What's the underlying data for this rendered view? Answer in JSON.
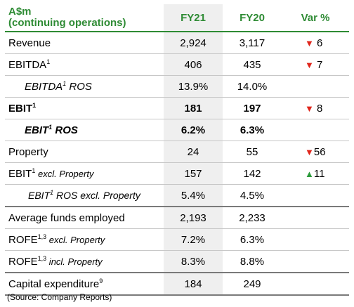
{
  "table": {
    "header": {
      "title_line1": "A$m",
      "title_line2": "(continuing operations)",
      "col_fy21": "FY21",
      "col_fy20": "FY20",
      "col_var": "Var %"
    },
    "rows": [
      {
        "label": "Revenue",
        "fy21": "2,924",
        "fy20": "3,117",
        "var": "6",
        "dir": "down"
      },
      {
        "label": "EBITDA",
        "sup": "1",
        "fy21": "406",
        "fy20": "435",
        "var": "7",
        "dir": "down"
      },
      {
        "label": "EBITDA",
        "sup": "1",
        "suffix": " ROS",
        "fy21": "13.9%",
        "fy20": "14.0%",
        "var": "",
        "dir": ""
      },
      {
        "label": "EBIT",
        "sup": "1",
        "fy21": "181",
        "fy20": "197",
        "var": "8",
        "dir": "down"
      },
      {
        "label": "EBIT",
        "sup": "1",
        "suffix": " ROS",
        "fy21": "6.2%",
        "fy20": "6.3%",
        "var": "",
        "dir": ""
      },
      {
        "label": "Property",
        "fy21": "24",
        "fy20": "55",
        "var": "56",
        "dir": "down"
      },
      {
        "label": "EBIT",
        "sup": "1",
        "suffix": " excl. Property",
        "fy21": "157",
        "fy20": "142",
        "var": "11",
        "dir": "up"
      },
      {
        "label": "EBIT",
        "sup": "1",
        "suffix": " ROS excl. Property",
        "fy21": "5.4%",
        "fy20": "4.5%",
        "var": "",
        "dir": ""
      },
      {
        "label": "Average funds employed",
        "fy21": "2,193",
        "fy20": "2,233",
        "var": "",
        "dir": ""
      },
      {
        "label": "ROFE",
        "sup": "1,3",
        "suffix": " excl. Property",
        "fy21": "7.2%",
        "fy20": "6.3%",
        "var": "",
        "dir": ""
      },
      {
        "label": "ROFE",
        "sup": "1,3",
        "suffix": " incl. Property",
        "fy21": "8.3%",
        "fy20": "8.8%",
        "var": "",
        "dir": ""
      },
      {
        "label": "Capital expenditure",
        "sup": "9",
        "fy21": "184",
        "fy20": "249",
        "var": "",
        "dir": ""
      }
    ],
    "arrow_colors": {
      "down": "#e0251b",
      "up": "#2b9a3a"
    },
    "icons": {
      "down": "triangle-down-icon",
      "up": "triangle-up-icon"
    }
  },
  "source_note": "(Source: Company Reports)"
}
